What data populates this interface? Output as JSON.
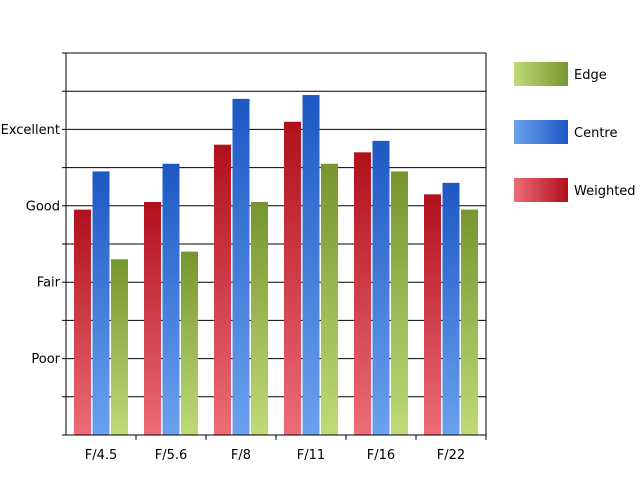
{
  "chart_data": {
    "type": "bar",
    "categories": [
      "F/4.5",
      "F/5.6",
      "F/8",
      "F/11",
      "F/16",
      "F/22"
    ],
    "y_tick_labels": [
      {
        "label": "Excellent",
        "value": 8
      },
      {
        "label": "Good",
        "value": 6
      },
      {
        "label": "Fair",
        "value": 4
      },
      {
        "label": "Poor",
        "value": 2
      }
    ],
    "ylim": [
      0,
      10
    ],
    "grid": true,
    "legend_position": "right",
    "series": [
      {
        "name": "Weighted",
        "key": "weighted",
        "color": "#c8202a",
        "values": [
          5.9,
          6.1,
          7.6,
          8.2,
          7.4,
          6.3
        ]
      },
      {
        "name": "Centre",
        "key": "centre",
        "color": "#2e6fd2",
        "values": [
          6.9,
          7.1,
          8.8,
          8.9,
          7.7,
          6.6
        ]
      },
      {
        "name": "Edge",
        "key": "edge",
        "color": "#86ad3a",
        "values": [
          4.6,
          4.8,
          6.1,
          7.1,
          6.9,
          5.9
        ]
      }
    ],
    "legend_order": [
      "Edge",
      "Centre",
      "Weighted"
    ]
  }
}
